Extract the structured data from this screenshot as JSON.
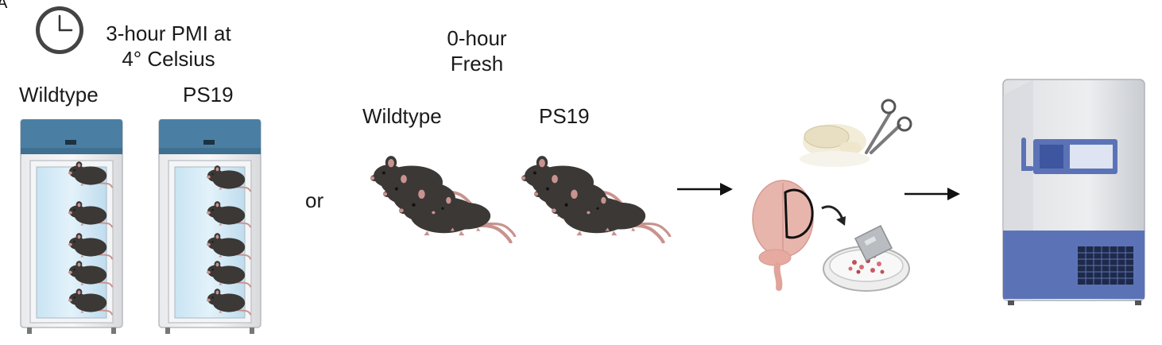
{
  "panel_letter": "A",
  "pmi_group": {
    "title_line1": "3-hour PMI at",
    "title_line2": "4° Celsius",
    "left_label": "Wildtype",
    "right_label": "PS19"
  },
  "connector": "or",
  "fresh_group": {
    "title_line1": "0-hour",
    "title_line2": "Fresh",
    "left_label": "Wildtype",
    "right_label": "PS19"
  },
  "icons": [
    "clock-icon",
    "refrigerator-icon",
    "mouse-icon",
    "scissors-icon",
    "brain-icon",
    "razor-blade-icon",
    "petri-dish-icon",
    "ultra-low-freezer-icon",
    "arrow-right-icon"
  ],
  "colors": {
    "mouse_body": "#3b3836",
    "mouse_pink": "#c8938e",
    "fridge_blue": "#4a7fa3",
    "freezer_blue": "#5b73b6",
    "brain_pink": "#e8b5ad"
  }
}
